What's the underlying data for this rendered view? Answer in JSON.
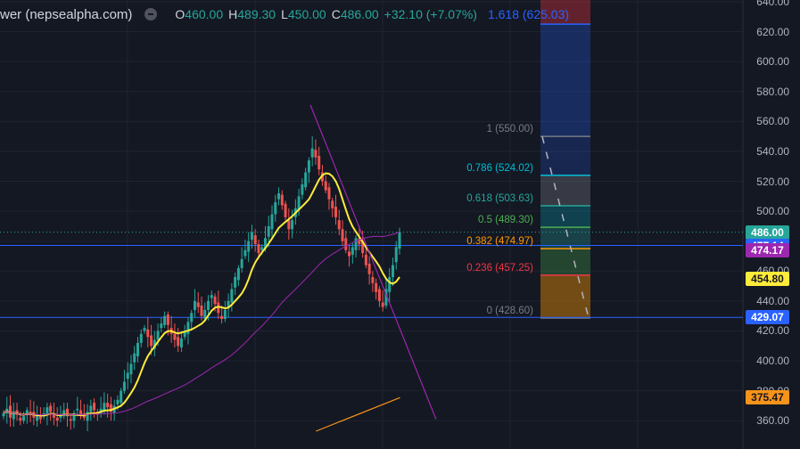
{
  "header": {
    "symbol": "wer (nepsealpha.com)",
    "eye_icon": "eye-icon",
    "o_key": "O",
    "o_val": "460.00",
    "h_key": "H",
    "h_val": "489.30",
    "l_key": "L",
    "l_val": "450.00",
    "c_key": "C",
    "c_val": "486.00",
    "change": "+32.10 (+7.07%)",
    "fib_label": "1.618 (625.03)"
  },
  "colors": {
    "background": "#141823",
    "up": "#26a69a",
    "down": "#ef5350",
    "ma_fast": "#ffeb3b",
    "ma_slow": "#9c27b0",
    "trendline": "#9c27b0",
    "hline": "#2962ff",
    "orange": "#f7931a"
  },
  "chart_data": {
    "type": "candlestick",
    "y_axis": {
      "range": [
        353,
        640
      ],
      "ticks": [
        "640.00",
        "620.00",
        "600.00",
        "580.00",
        "560.00",
        "540.00",
        "520.00",
        "500.00",
        "480.00",
        "460.00",
        "440.00",
        "420.00",
        "400.00",
        "380.00",
        "360.00"
      ]
    },
    "horizontal_lines": [
      477.14,
      429.07
    ],
    "price_tags": [
      {
        "label": "486.00",
        "value": 486.0,
        "bg": "#26a69a",
        "fg": "#ffffff"
      },
      {
        "label": "477.14",
        "value": 477.14,
        "bg": "#2962ff",
        "fg": "#ffffff"
      },
      {
        "label": "474.17",
        "value": 474.17,
        "bg": "#9c27b0",
        "fg": "#ffffff"
      },
      {
        "label": "454.80",
        "value": 454.8,
        "bg": "#ffeb3b",
        "fg": "#131722"
      },
      {
        "label": "429.07",
        "value": 429.07,
        "bg": "#2962ff",
        "fg": "#ffffff"
      },
      {
        "label": "375.47",
        "value": 375.47,
        "bg": "#f7931a",
        "fg": "#131722"
      }
    ],
    "fib_levels": [
      {
        "label": "1.618 (625.03)",
        "value": 625.03,
        "color": "#2962ff"
      },
      {
        "label": "1 (550.00)",
        "value": 550.0,
        "color": "#787b86"
      },
      {
        "label": "0.786 (524.02)",
        "value": 524.02,
        "color": "#00bcd4"
      },
      {
        "label": "0.618 (503.63)",
        "value": 503.63,
        "color": "#26a69a"
      },
      {
        "label": "0.5 (489.30)",
        "value": 489.3,
        "color": "#4caf50"
      },
      {
        "label": "0.382 (474.97)",
        "value": 474.97,
        "color": "#ff9800"
      },
      {
        "label": "0.236 (457.25)",
        "value": 457.25,
        "color": "#f23645"
      },
      {
        "label": "0 (428.60)",
        "value": 428.6,
        "color": "#787b86"
      }
    ],
    "series": [
      {
        "name": "",
        "type": "candles",
        "closes": [
          365,
          368,
          362,
          366,
          364,
          360,
          363,
          367,
          365,
          362,
          364,
          361,
          365,
          369,
          366,
          362,
          360,
          364,
          367,
          363,
          360,
          365,
          368,
          364,
          362,
          366,
          370,
          367,
          364,
          368,
          372,
          369,
          366,
          370,
          374,
          380,
          386,
          392,
          398,
          405,
          412,
          418,
          422,
          416,
          410,
          414,
          420,
          425,
          430,
          424,
          418,
          414,
          410,
          415,
          420,
          426,
          432,
          440,
          436,
          430,
          434,
          440,
          444,
          438,
          432,
          428,
          434,
          440,
          448,
          456,
          462,
          468,
          474,
          480,
          486,
          478,
          472,
          476,
          482,
          490,
          498,
          506,
          512,
          504,
          496,
          488,
          494,
          502,
          510,
          518,
          526,
          534,
          542,
          536,
          528,
          520,
          514,
          508,
          502,
          496,
          488,
          480,
          474,
          470,
          476,
          482,
          478,
          472,
          464,
          458,
          452,
          446,
          440,
          436,
          448,
          456,
          464,
          476,
          486
        ]
      },
      {
        "name": "",
        "type": "ma",
        "period": 9
      },
      {
        "name": "",
        "type": "ma",
        "period": 50
      }
    ],
    "trendline": [
      {
        "x": 0.388,
        "y": 571
      },
      {
        "x": 0.545,
        "y": 361
      }
    ],
    "orange_line": [
      {
        "x": 0.395,
        "y": 353
      },
      {
        "x": 0.5,
        "y": 375.47
      }
    ]
  }
}
